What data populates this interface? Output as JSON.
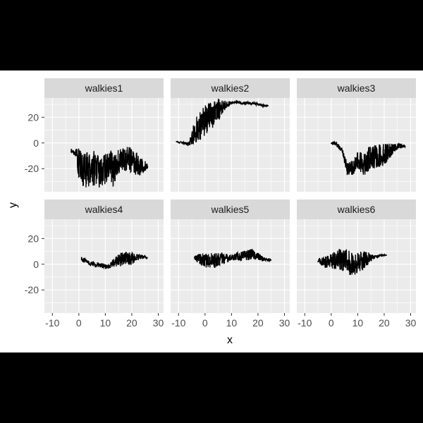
{
  "chart_data": {
    "type": "line",
    "layout": "faceted 2x3 grid, shared axes",
    "xlabel": "x",
    "ylabel": "y",
    "xlim": [
      -13,
      32
    ],
    "ylim": [
      -38,
      35
    ],
    "xticks": [
      -10,
      0,
      10,
      20,
      30
    ],
    "yticks": [
      -20,
      0,
      20
    ],
    "x_tick_labels": [
      "-10",
      "0",
      "10",
      "20",
      "30"
    ],
    "y_tick_labels": [
      "-20",
      "0",
      "20"
    ],
    "grid": true,
    "panel_background": "#ebebeb",
    "strip_background": "#d9d9d9",
    "line_color": "#000000",
    "page_background": "#ffffff",
    "letterbox_color": "#000000",
    "facets": [
      {
        "label": "walkies1",
        "x": [
          -3,
          -1,
          0,
          2,
          4,
          6,
          8,
          10,
          12,
          13,
          15,
          17,
          19,
          21,
          23,
          25,
          26
        ],
        "y": [
          -6,
          -8,
          -18,
          -22,
          -20,
          -19,
          -24,
          -20,
          -17,
          -22,
          -14,
          -13,
          -12,
          -15,
          -18,
          -18,
          -18
        ],
        "spread": [
          1,
          3,
          14,
          14,
          14,
          14,
          12,
          12,
          12,
          12,
          10,
          10,
          10,
          10,
          8,
          4,
          2
        ]
      },
      {
        "label": "walkies2",
        "x": [
          -11,
          -8,
          -6,
          -4,
          -2,
          0,
          2,
          4,
          6,
          8,
          10,
          12,
          14,
          16,
          18,
          20,
          22,
          24
        ],
        "y": [
          1,
          0,
          -1,
          8,
          14,
          18,
          22,
          24,
          27,
          30,
          31,
          32,
          31,
          31,
          31,
          30,
          29,
          29
        ],
        "spread": [
          0,
          1,
          2,
          10,
          12,
          13,
          12,
          10,
          7,
          3,
          1,
          1,
          1,
          1,
          1,
          1,
          1,
          0
        ]
      },
      {
        "label": "walkies3",
        "x": [
          0,
          2,
          4,
          6,
          8,
          10,
          12,
          14,
          16,
          18,
          20,
          22,
          24,
          26,
          28
        ],
        "y": [
          0,
          -1,
          -5,
          -20,
          -18,
          -15,
          -16,
          -13,
          -12,
          -10,
          -9,
          -6,
          -4,
          -2,
          -3
        ],
        "spread": [
          1,
          2,
          2,
          5,
          7,
          8,
          10,
          10,
          10,
          9,
          9,
          6,
          3,
          2,
          1
        ]
      },
      {
        "label": "walkies4",
        "x": [
          1,
          3,
          5,
          7,
          9,
          11,
          13,
          15,
          17,
          19,
          21,
          23,
          26
        ],
        "y": [
          4,
          2,
          0,
          -1,
          -1,
          -2,
          1,
          3,
          4,
          4,
          5,
          6,
          5
        ],
        "spread": [
          2,
          2,
          2,
          2,
          2,
          2,
          3,
          5,
          6,
          6,
          4,
          2,
          1
        ]
      },
      {
        "label": "walkies5",
        "x": [
          -4,
          -2,
          0,
          2,
          4,
          6,
          8,
          10,
          12,
          14,
          16,
          18,
          20,
          22,
          25
        ],
        "y": [
          5,
          4,
          3,
          3,
          3,
          4,
          4,
          5,
          6,
          6,
          7,
          8,
          6,
          4,
          3
        ],
        "spread": [
          1,
          5,
          6,
          6,
          6,
          5,
          4,
          2,
          3,
          4,
          4,
          4,
          3,
          2,
          1
        ]
      },
      {
        "label": "walkies6",
        "x": [
          -5,
          -3,
          -1,
          1,
          3,
          5,
          7,
          9,
          11,
          13,
          15,
          17,
          19,
          21
        ],
        "y": [
          3,
          2,
          2,
          3,
          4,
          3,
          1,
          0,
          2,
          4,
          5,
          6,
          7,
          7
        ],
        "spread": [
          2,
          4,
          6,
          7,
          8,
          9,
          10,
          9,
          8,
          7,
          3,
          1,
          1,
          0
        ]
      }
    ]
  }
}
